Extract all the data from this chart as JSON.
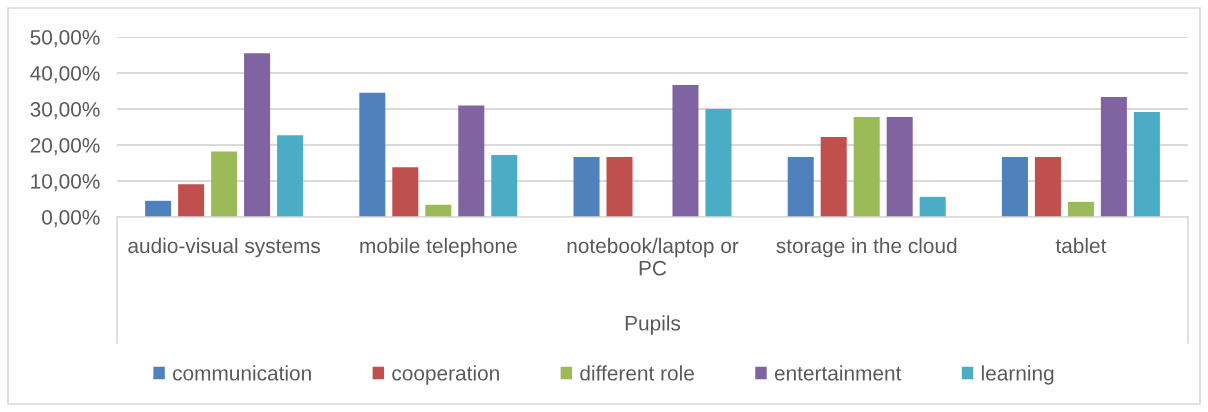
{
  "chart_data": {
    "type": "bar",
    "xlabel": "Pupils",
    "categories": [
      "audio-visual systems",
      "mobile telephone",
      "notebook/laptop or PC",
      "storage in the cloud",
      "tablet"
    ],
    "series": [
      {
        "name": "communication",
        "color": "#4f81bd",
        "values": [
          4.5,
          34.5,
          16.7,
          16.7,
          16.7
        ]
      },
      {
        "name": "cooperation",
        "color": "#c0504d",
        "values": [
          9.1,
          13.8,
          16.7,
          22.2,
          16.7
        ]
      },
      {
        "name": "different role",
        "color": "#9bbb59",
        "values": [
          18.2,
          3.4,
          null,
          27.8,
          4.2
        ]
      },
      {
        "name": "entertainment",
        "color": "#8064a2",
        "values": [
          45.5,
          31.0,
          36.7,
          27.8,
          33.3
        ]
      },
      {
        "name": "learning",
        "color": "#4bacc6",
        "values": [
          22.7,
          17.2,
          30.0,
          5.6,
          29.2
        ]
      }
    ],
    "ylim": [
      0,
      50
    ],
    "yticks": [
      {
        "value": 0,
        "label": "0,00%"
      },
      {
        "value": 10,
        "label": "10,00%"
      },
      {
        "value": 20,
        "label": "20,00%"
      },
      {
        "value": 30,
        "label": "30,00%"
      },
      {
        "value": 40,
        "label": "40,00%"
      },
      {
        "value": 50,
        "label": "50,00%"
      }
    ],
    "grid": "y",
    "legend": "bottom"
  }
}
